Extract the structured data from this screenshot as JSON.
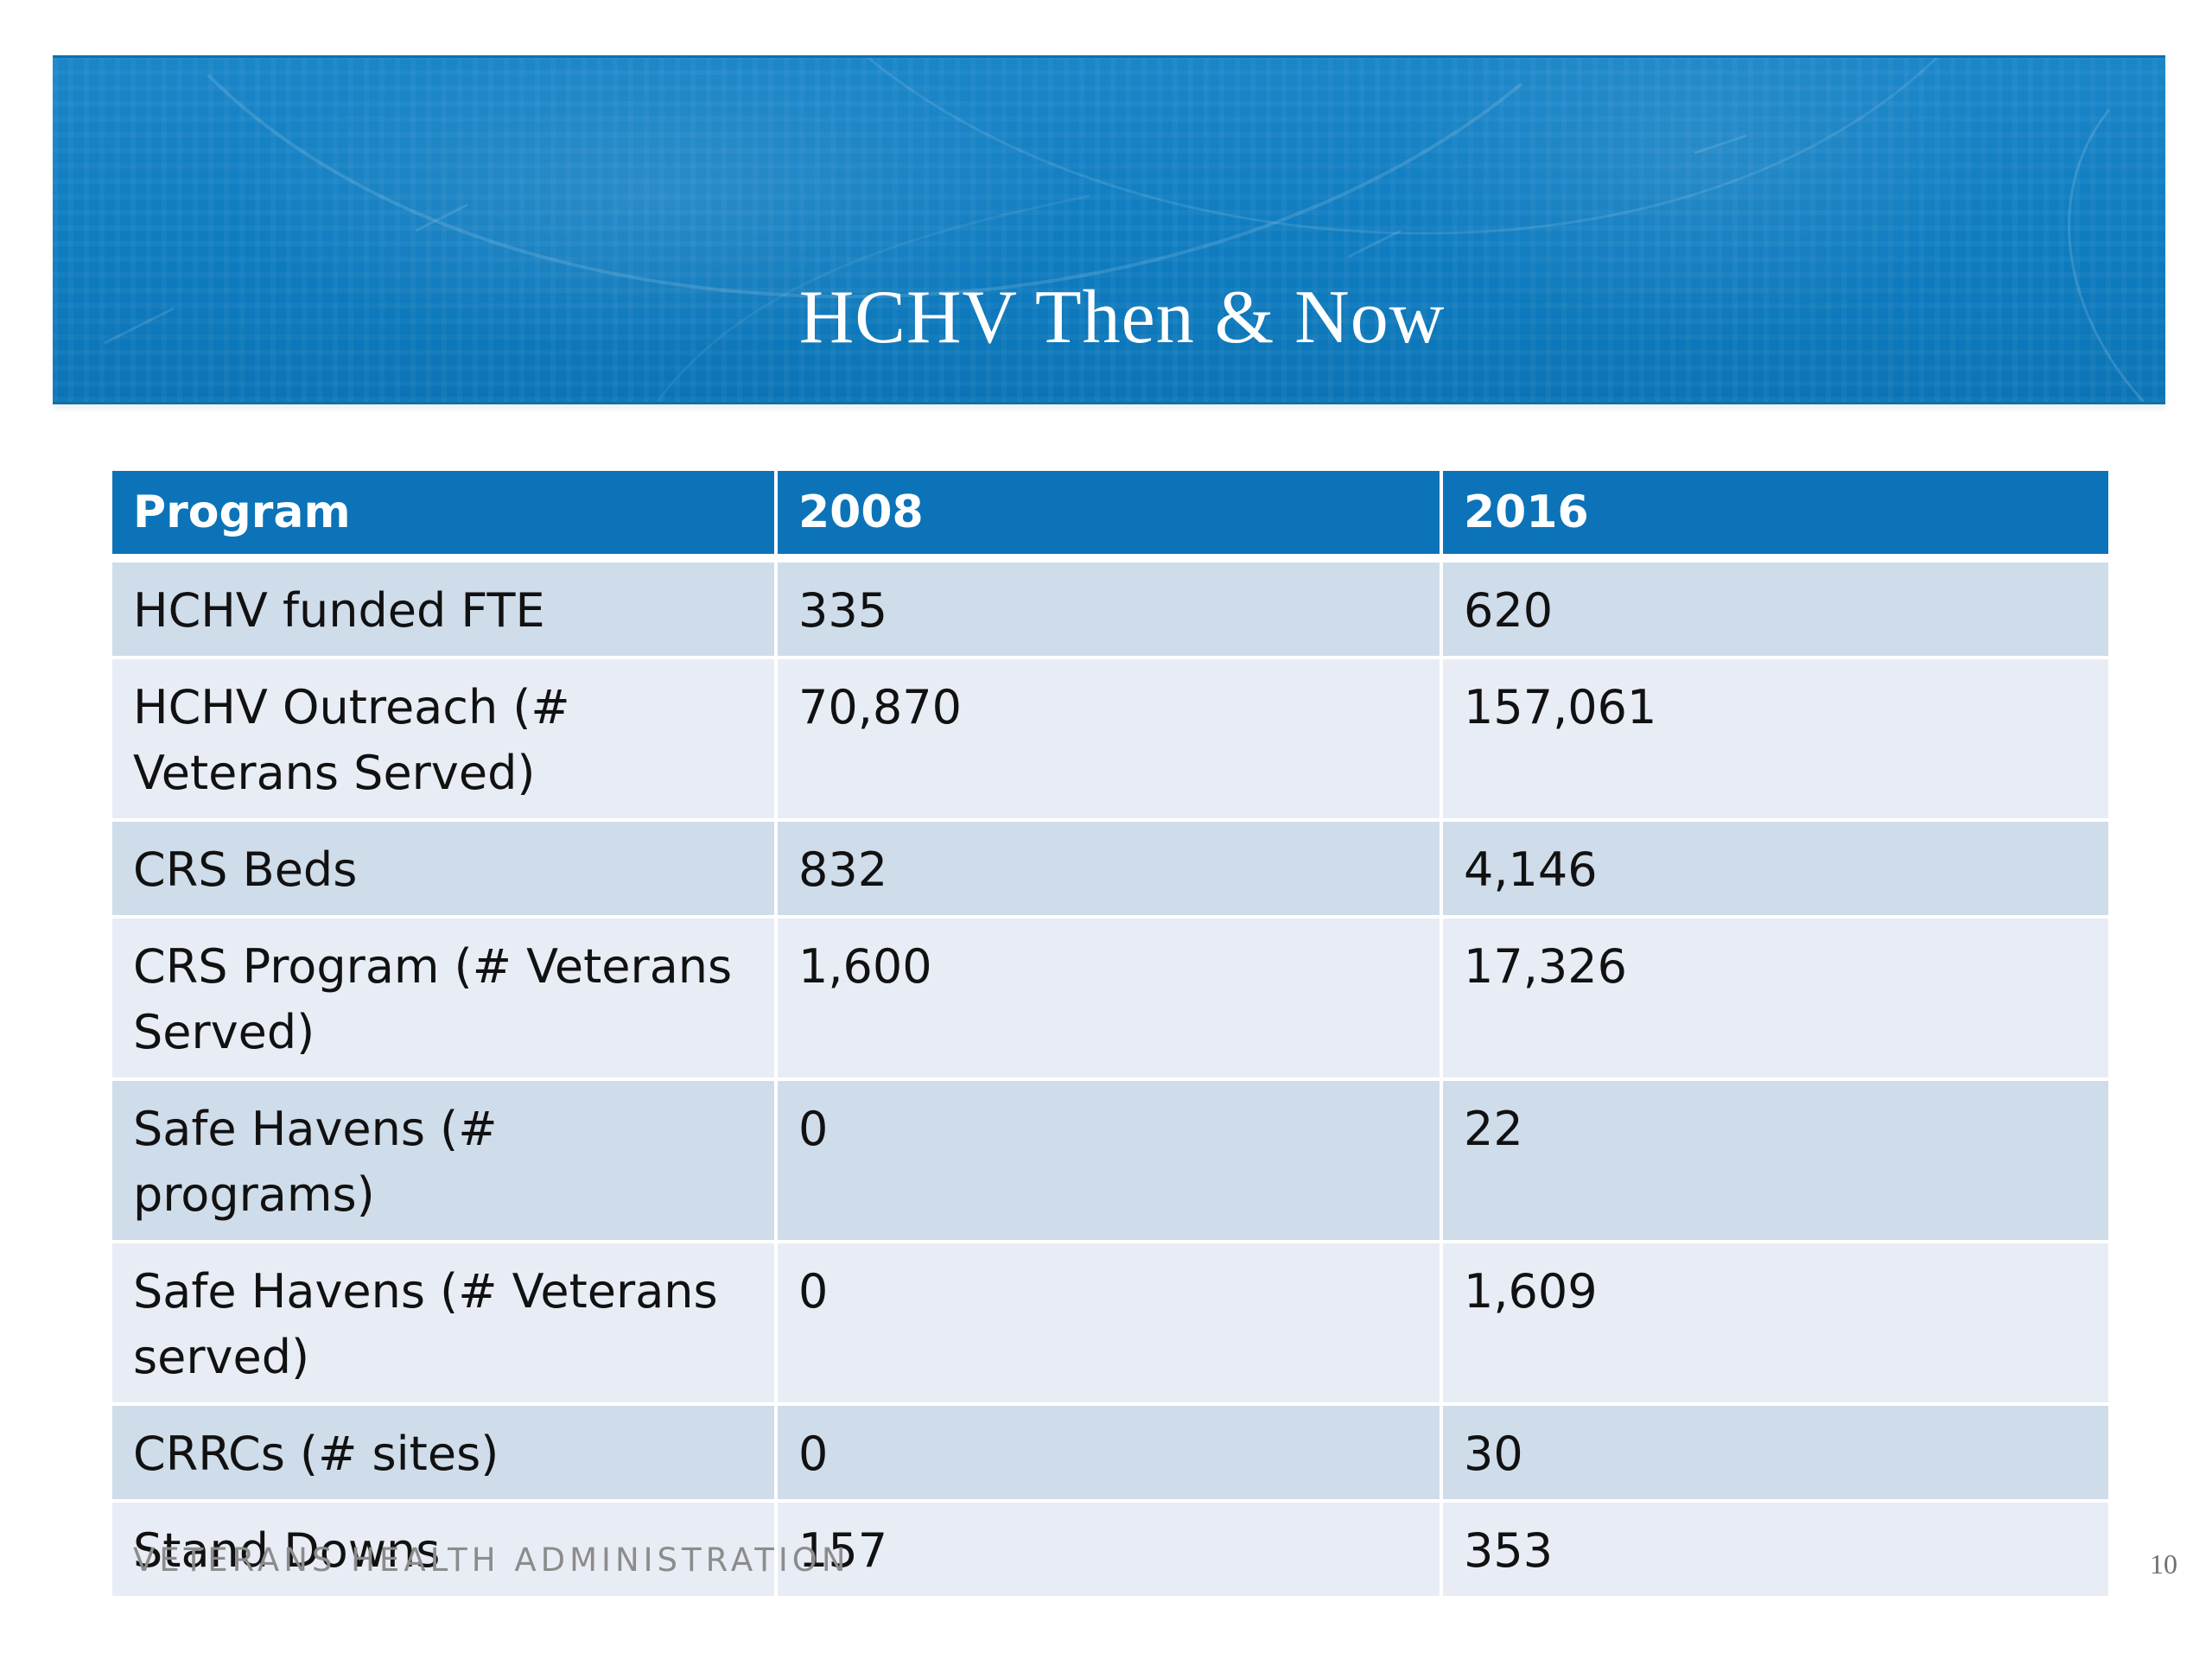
{
  "slide": {
    "title": "HCHV Then & Now",
    "footer": "VETERANS HEALTH ADMINISTRATION",
    "page_number": "10"
  },
  "table": {
    "headers": [
      "Program",
      "2008",
      "2016"
    ],
    "rows": [
      [
        "HCHV funded FTE",
        "335",
        "620"
      ],
      [
        "HCHV Outreach (# Veterans Served)",
        "70,870",
        "157,061"
      ],
      [
        "CRS Beds",
        "832",
        "4,146"
      ],
      [
        "CRS Program (# Veterans Served)",
        "1,600",
        "17,326"
      ],
      [
        "Safe Havens (# programs)",
        "0",
        "22"
      ],
      [
        "Safe Havens (# Veterans served)",
        "0",
        "1,609"
      ],
      [
        "CRRCs (# sites)",
        "0",
        "30"
      ],
      [
        "Stand Downs",
        "157",
        "353"
      ]
    ]
  },
  "colors": {
    "banner": "#0f7cc0",
    "header_row": "#0c73b8",
    "row_dark": "#cfdcea",
    "row_light": "#e8edf5"
  }
}
